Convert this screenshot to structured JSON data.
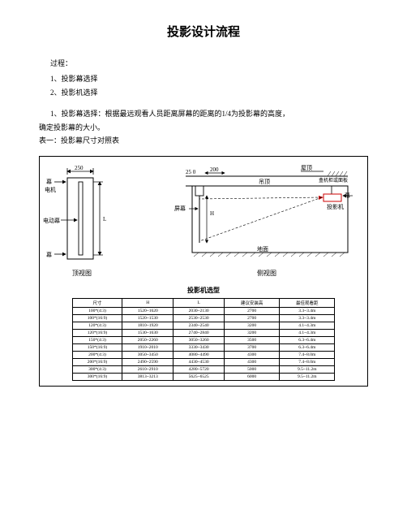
{
  "title": "投影设计流程",
  "process_label": "过程：",
  "steps": [
    "1、投影幕选择",
    "2、投影机选择"
  ],
  "para1": "1、投影幕选择：根据最远观看人员距离屏幕的距离的1/4为投影幕的高度，",
  "para1b": "确定投影幕的大小。",
  "para2": "表一：投影幕尺寸对照表",
  "diagram_left": {
    "dim_top": "250",
    "label_motor_jt": "幕",
    "label_motor": "电机",
    "label_screen": "电动幕",
    "label_bottom": "幕",
    "L": "L",
    "caption": "顶视图",
    "colors": {
      "stroke": "#000000",
      "arrow_fill": "#000000",
      "text": "#000000"
    }
  },
  "diagram_right": {
    "dim_250": "25 0",
    "dim_200": "200",
    "label_roof": "屋顶",
    "label_ceiling": "吊顶",
    "label_box": "盒机柜或面板",
    "label_jt": "幕",
    "label_proj": "投影机",
    "label_screen": "屏幕",
    "label_H": "H",
    "label_ground": "地面",
    "caption": "侧视图",
    "colors": {
      "stroke": "#000000",
      "proj_red": "#cc0000",
      "text": "#000000"
    }
  },
  "table_title": "投影机选型",
  "table_headers": [
    "尺寸",
    "H",
    "L",
    "建议安装高",
    "最佳观看距"
  ],
  "table_rows": [
    [
      "100*(4:3)",
      "1520~1620",
      "2030~2130",
      "2700",
      "3.3~3.4m"
    ],
    [
      "100*(16:9)",
      "1520~1530",
      "2530~2530",
      "2700",
      "3.3~3.4m"
    ],
    [
      "120*(4:3)",
      "1810~1920",
      "2340~2540",
      "3200",
      "4.1~4.3m"
    ],
    [
      "120*(16:9)",
      "1530~1630",
      "2740~2840",
      "3200",
      "4.1~4.3m"
    ],
    [
      "150*(4:3)",
      "2050~2260",
      "3050~3260",
      "3500",
      "6.3~6.4m"
    ],
    [
      "150*(16:9)",
      "1910~2010",
      "3330~3430",
      "3700",
      "6.3~6.4m"
    ],
    [
      "200*(4:3)",
      "3050~3450",
      "4080~4490",
      "4300",
      "7.4~8.0m"
    ],
    [
      "200*(16:9)",
      "2490~2590",
      "4430~4530",
      "4300",
      "7.4~8.0m"
    ],
    [
      "300*(4:3)",
      "2610~2910",
      "4280~5720",
      "5000",
      "9.5~11.2m"
    ],
    [
      "300*(16:9)",
      "3813~3213",
      "5625~6525",
      "6000",
      "9.5~11.2m"
    ]
  ],
  "colors": {
    "page_bg": "#ffffff",
    "text": "#000000",
    "border": "#000000"
  }
}
